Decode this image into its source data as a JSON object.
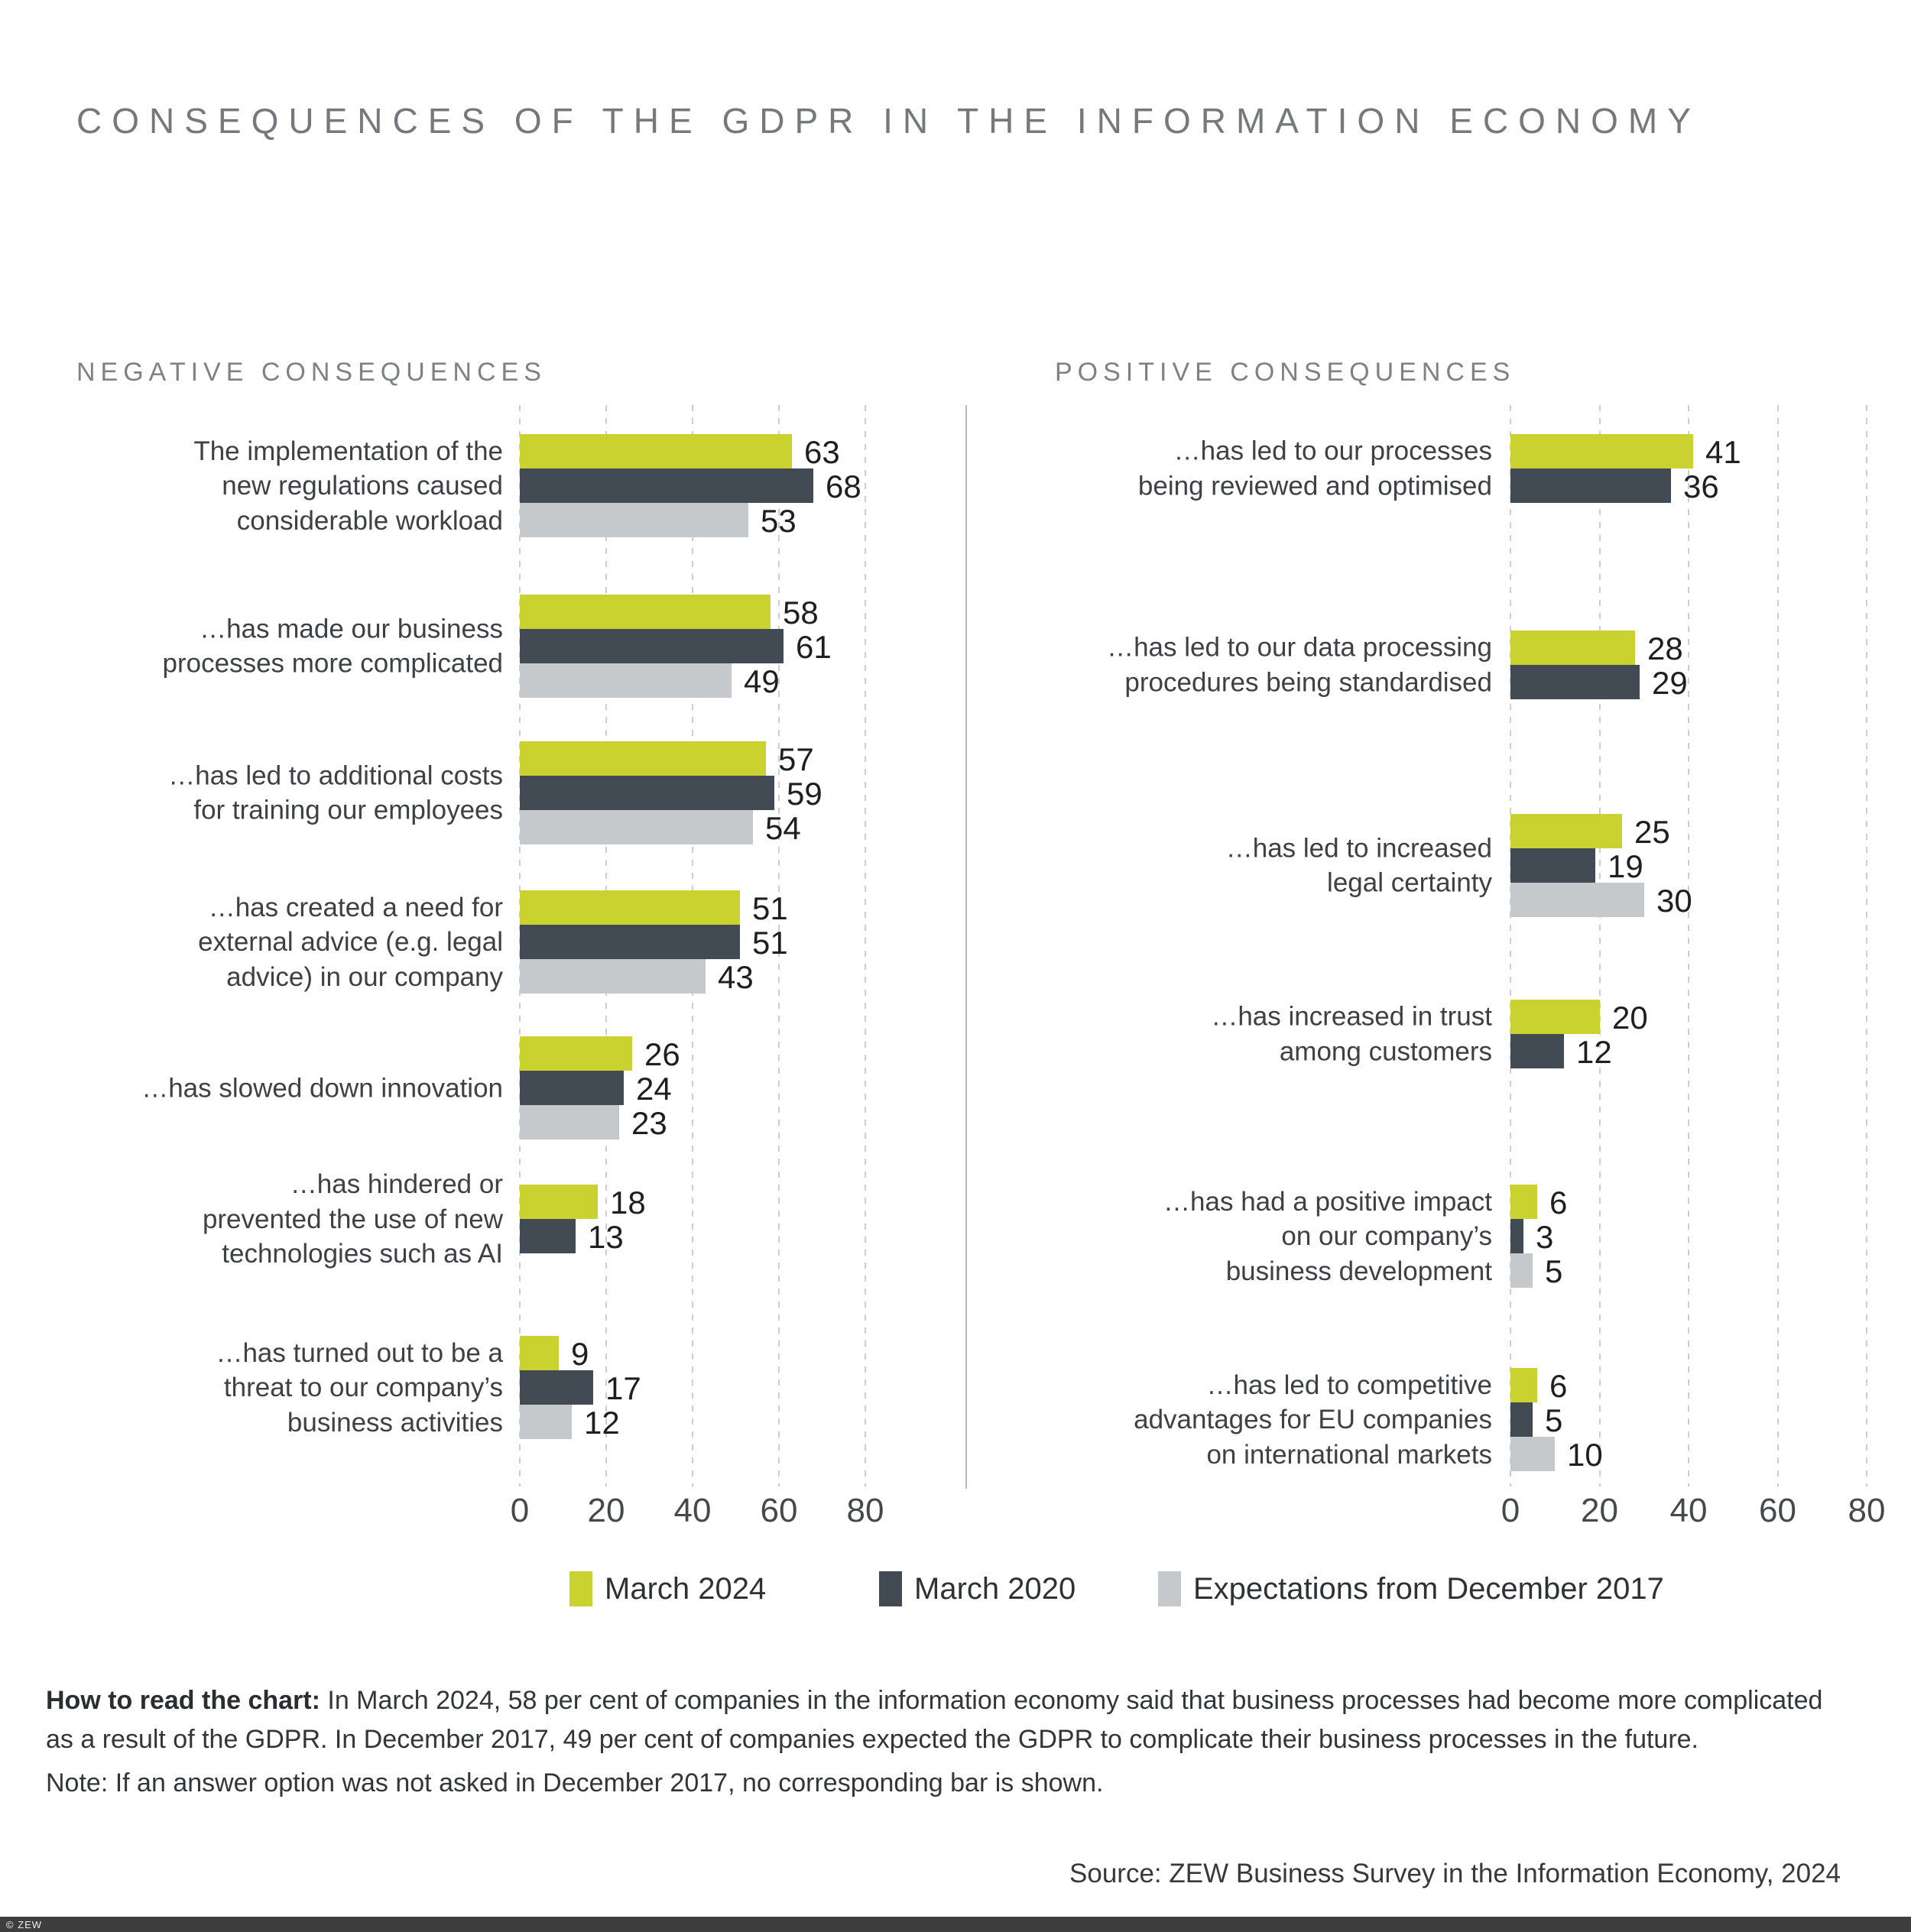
{
  "title": "CONSEQUENCES OF THE GDPR IN THE INFORMATION ECONOMY",
  "legend": {
    "items": [
      {
        "label": "March 2024",
        "color": "#c9d22e"
      },
      {
        "label": "March 2020",
        "color": "#424b53"
      },
      {
        "label": "Expectations from December 2017",
        "color": "#c5c9cc"
      }
    ]
  },
  "notes": {
    "how_bold": "How to read the chart:",
    "how_line1": " In March 2024, 58 per cent of companies in the information economy said that business processes had become more complicated",
    "how_line2": "as a result of the GDPR. In December 2017, 49 per cent of companies expected the GDPR to complicate their business processes in the future.",
    "note": "Note: If an answer option was not asked in December 2017, no corresponding bar is shown.",
    "source": "Source: ZEW Business Survey in the Information Economy, 2024",
    "copyright": "© ZEW"
  },
  "chart_data": [
    {
      "type": "bar",
      "orientation": "horizontal",
      "title": "NEGATIVE CONSEQUENCES",
      "xlabel": "",
      "ylabel": "",
      "xlim": [
        0,
        80
      ],
      "xticks": [
        0,
        20,
        40,
        60,
        80
      ],
      "grid": true,
      "legend_position": "bottom",
      "series": [
        "March 2024",
        "March 2020",
        "Expectations from December 2017"
      ],
      "colors": [
        "#c9d22e",
        "#424b53",
        "#c5c9cc"
      ],
      "rows": [
        {
          "label_lines": [
            "The implementation of the",
            "new regulations caused",
            "considerable workload"
          ],
          "values": [
            63,
            68,
            53
          ]
        },
        {
          "label_lines": [
            "…has made our business",
            "processes more complicated"
          ],
          "values": [
            58,
            61,
            49
          ]
        },
        {
          "label_lines": [
            "…has led to additional costs",
            "for training our employees"
          ],
          "values": [
            57,
            59,
            54
          ]
        },
        {
          "label_lines": [
            "…has created a need for",
            "external advice (e.g. legal",
            "advice) in our company"
          ],
          "values": [
            51,
            51,
            43
          ]
        },
        {
          "label_lines": [
            "…has slowed down innovation"
          ],
          "values": [
            26,
            24,
            23
          ]
        },
        {
          "label_lines": [
            "…has hindered or",
            "prevented the use of new",
            "technologies such as AI"
          ],
          "values": [
            18,
            13,
            null
          ]
        },
        {
          "label_lines": [
            "…has turned out to be a",
            "threat to our company’s",
            "business activities"
          ],
          "values": [
            9,
            17,
            12
          ]
        }
      ]
    },
    {
      "type": "bar",
      "orientation": "horizontal",
      "title": "POSITIVE CONSEQUENCES",
      "xlabel": "",
      "ylabel": "",
      "xlim": [
        0,
        80
      ],
      "xticks": [
        0,
        20,
        40,
        60,
        80
      ],
      "grid": true,
      "legend_position": "bottom",
      "series": [
        "March 2024",
        "March 2020",
        "Expectations from December 2017"
      ],
      "colors": [
        "#c9d22e",
        "#424b53",
        "#c5c9cc"
      ],
      "rows": [
        {
          "label_lines": [
            "…has led to our processes",
            "being reviewed and optimised"
          ],
          "values": [
            41,
            36,
            null
          ]
        },
        {
          "label_lines": [
            "…has led to our data processing",
            "procedures being standardised"
          ],
          "values": [
            28,
            29,
            null
          ]
        },
        {
          "label_lines": [
            "…has led to increased",
            "legal certainty"
          ],
          "values": [
            25,
            19,
            30
          ]
        },
        {
          "label_lines": [
            "…has increased in trust",
            "among customers"
          ],
          "values": [
            20,
            12,
            null
          ]
        },
        {
          "label_lines": [
            "…has had a positive impact",
            "on our company’s",
            "business development"
          ],
          "values": [
            6,
            3,
            5
          ]
        },
        {
          "label_lines": [
            "…has led to competitive",
            "advantages for EU companies",
            "on international markets"
          ],
          "values": [
            6,
            5,
            10
          ]
        }
      ]
    }
  ]
}
